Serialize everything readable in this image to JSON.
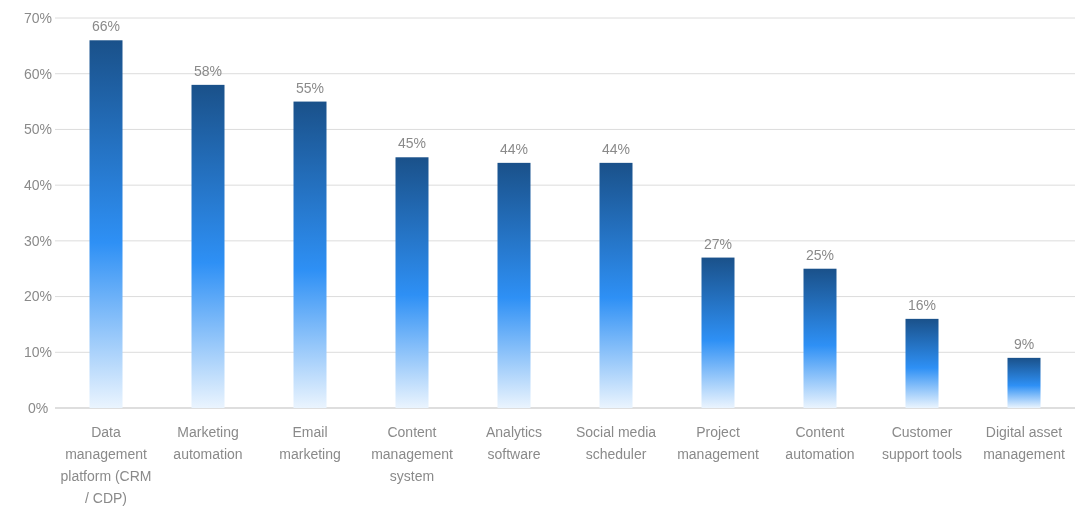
{
  "chart_data": {
    "type": "bar",
    "categories": [
      "Data management platform (CRM / CDP)",
      "Marketing automation",
      "Email marketing",
      "Content management system",
      "Analytics software",
      "Social media scheduler",
      "Project management",
      "Content automation",
      "Customer support tools",
      "Digital asset management"
    ],
    "values": [
      66,
      58,
      55,
      45,
      44,
      44,
      27,
      25,
      16,
      9
    ],
    "value_labels": [
      "66%",
      "58%",
      "55%",
      "45%",
      "44%",
      "44%",
      "27%",
      "25%",
      "16%",
      "9%"
    ],
    "color": "#2e90f5",
    "ylim": [
      0,
      70
    ],
    "yticks": [
      {
        "value": 0,
        "label": "0%"
      },
      {
        "value": 10,
        "label": "10%"
      },
      {
        "value": 20,
        "label": "20%"
      },
      {
        "value": 30,
        "label": "30%"
      },
      {
        "value": 40,
        "label": "40%"
      },
      {
        "value": 50,
        "label": "50%"
      },
      {
        "value": 60,
        "label": "60%"
      },
      {
        "value": 70,
        "label": "70%"
      }
    ],
    "grid": "y"
  }
}
